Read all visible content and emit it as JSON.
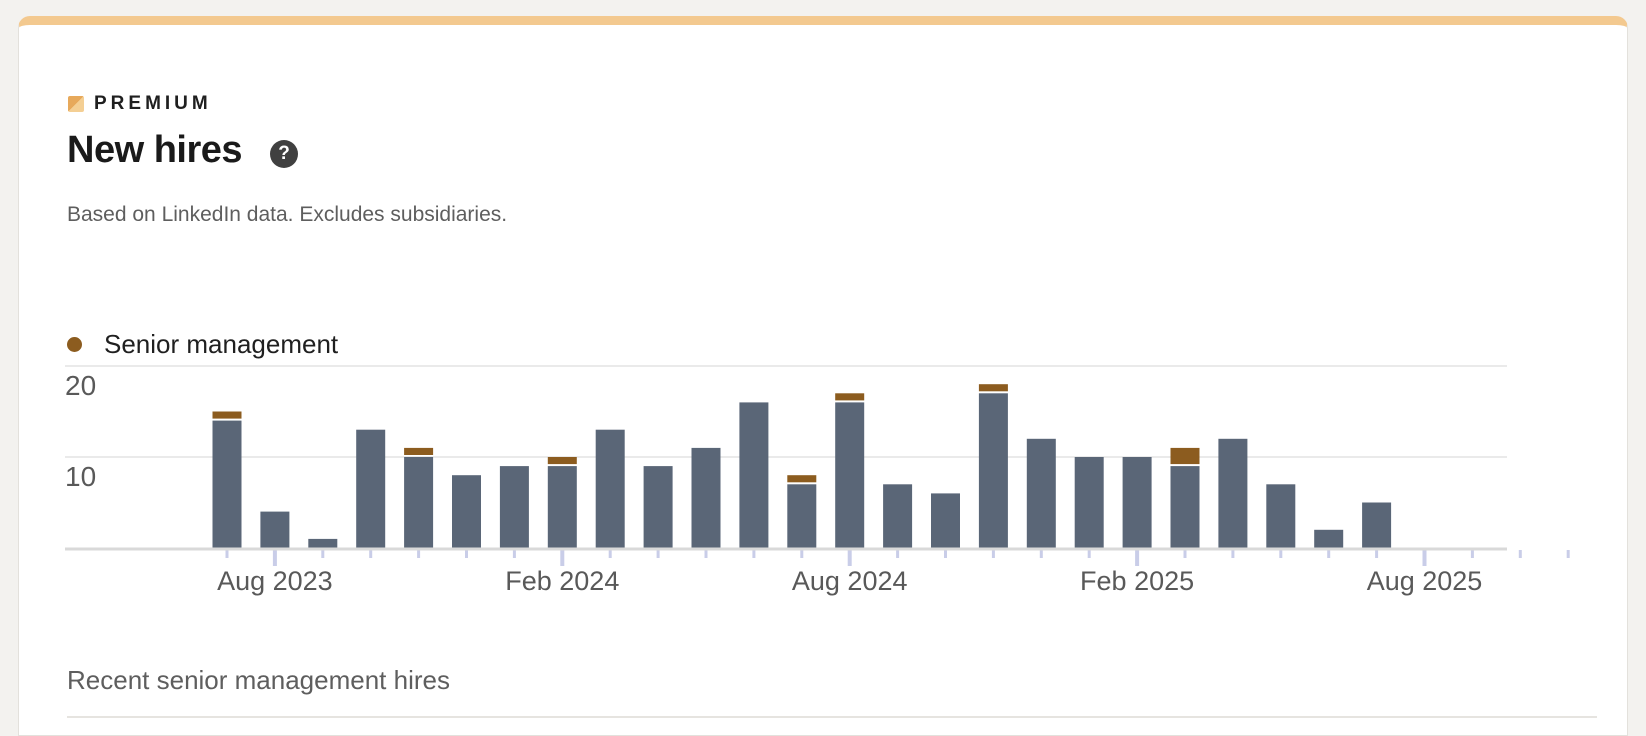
{
  "header": {
    "premium_label": "PREMIUM",
    "title": "New hires",
    "help_icon": "help-circle-icon",
    "subtitle": "Based on LinkedIn data. Excludes subsidiaries."
  },
  "legend": {
    "label": "Senior management",
    "color": "#8c5c1f"
  },
  "recent": {
    "title": "Recent senior management hires"
  },
  "colors": {
    "other_hires": "#5a6677",
    "senior_management": "#8c5c1f",
    "premium_accent": "#f3c98f"
  },
  "chart_data": {
    "type": "bar",
    "stacked": true,
    "months": [
      "Jul 2023",
      "Aug 2023",
      "Sep 2023",
      "Oct 2023",
      "Nov 2023",
      "Dec 2023",
      "Jan 2024",
      "Feb 2024",
      "Mar 2024",
      "Apr 2024",
      "May 2024",
      "Jun 2024",
      "Jul 2024",
      "Aug 2024",
      "Sep 2024",
      "Oct 2024",
      "Nov 2024",
      "Dec 2024",
      "Jan 2025",
      "Feb 2025",
      "Mar 2025",
      "Apr 2025",
      "May 2025",
      "Jun 2025",
      "Jul 2025",
      "Aug 2025",
      "Sep 2025",
      "Oct 2025",
      "Nov 2025"
    ],
    "series": [
      {
        "values": [
          14,
          4,
          1,
          13,
          10,
          8,
          9,
          9,
          13,
          9,
          11,
          16,
          7,
          16,
          7,
          6,
          17,
          12,
          10,
          10,
          9,
          12,
          7,
          2,
          5,
          null,
          null,
          null,
          null
        ],
        "color": "#5a6677"
      },
      {
        "name": "Senior management",
        "values": [
          1,
          0,
          0,
          0,
          1,
          0,
          0,
          1,
          0,
          0,
          0,
          0,
          1,
          1,
          0,
          0,
          1,
          0,
          0,
          0,
          2,
          0,
          0,
          0,
          0,
          null,
          null,
          null,
          null
        ],
        "color": "#8c5c1f"
      }
    ],
    "x_tick_labels": [
      "Aug 2023",
      "Feb 2024",
      "Aug 2024",
      "Feb 2025",
      "Aug 2025"
    ],
    "y_ticks": [
      10,
      20
    ],
    "ylim": [
      0,
      20
    ],
    "grid": true
  }
}
